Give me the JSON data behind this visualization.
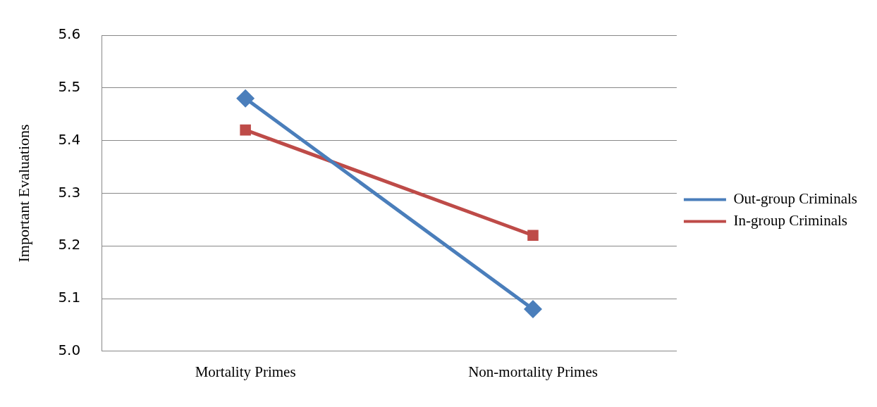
{
  "chart_data": {
    "type": "line",
    "ylabel": "Important Evaluations",
    "categories": [
      "Mortality Primes",
      "Non-mortality Primes"
    ],
    "series": [
      {
        "name": "Out-group Criminals",
        "color": "#4a7ebb",
        "values": [
          5.48,
          5.08
        ],
        "marker": "diamond"
      },
      {
        "name": "In-group Criminals",
        "color": "#be4b48",
        "values": [
          5.42,
          5.22
        ],
        "marker": "square"
      }
    ],
    "ylim": [
      5.0,
      5.6
    ],
    "yticks": [
      {
        "value": 5,
        "label": "5.0"
      },
      5.1,
      5.2,
      5.3,
      5.4,
      5.5,
      5.6
    ],
    "grid": "y",
    "legend": "right"
  }
}
